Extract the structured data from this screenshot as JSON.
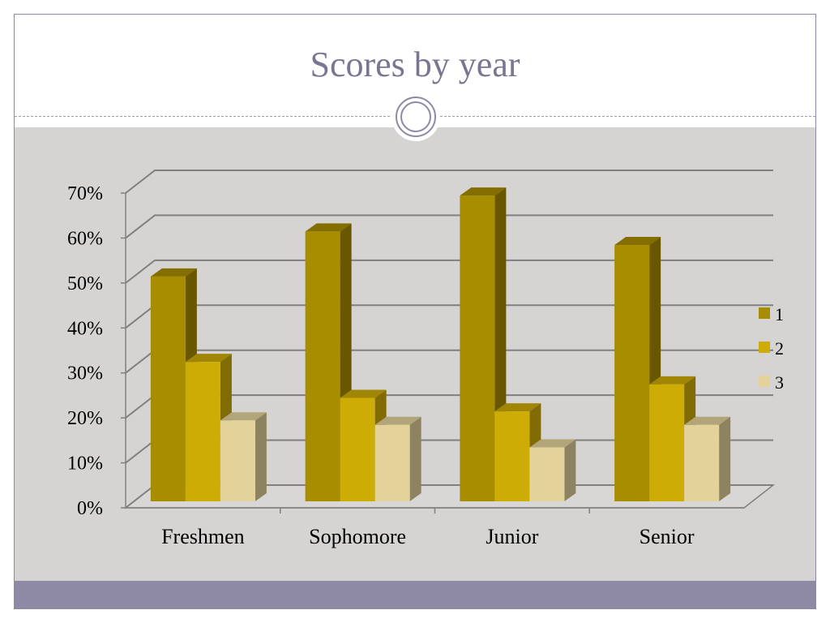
{
  "slide": {
    "title": "Scores by year"
  },
  "colors": {
    "series1": "#a98d00",
    "series2": "#ceac06",
    "series3": "#e3d39b",
    "panel": "#d5d4d3",
    "accent": "#8e8aa6"
  },
  "chart_data": {
    "type": "bar",
    "title": "Scores by year",
    "categories": [
      "Freshmen",
      "Sophomore",
      "Junior",
      "Senior"
    ],
    "series": [
      {
        "name": "1",
        "values": [
          0.5,
          0.6,
          0.68,
          0.57
        ]
      },
      {
        "name": "2",
        "values": [
          0.31,
          0.23,
          0.2,
          0.26
        ]
      },
      {
        "name": "3",
        "values": [
          0.18,
          0.17,
          0.12,
          0.17
        ]
      }
    ],
    "ylim": [
      0,
      0.7
    ],
    "yticks": [
      "0%",
      "10%",
      "20%",
      "30%",
      "40%",
      "50%",
      "60%",
      "70%"
    ],
    "grid": true,
    "legend": "right",
    "style": "3d-clustered-column"
  }
}
